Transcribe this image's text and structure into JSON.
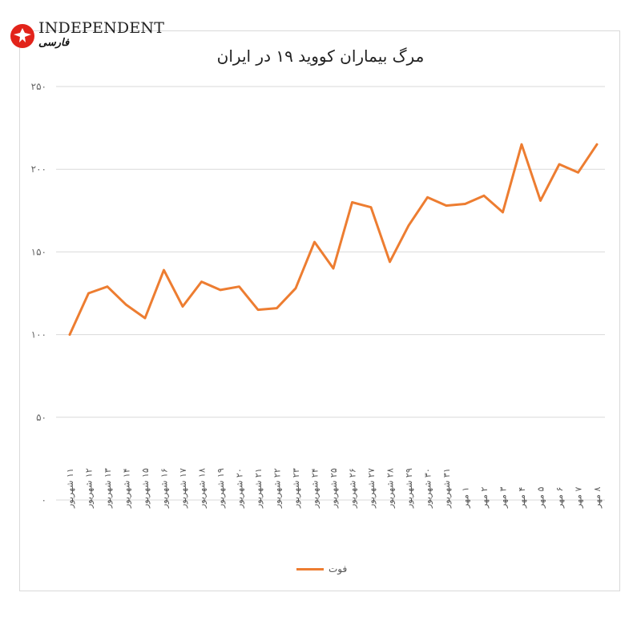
{
  "brand": {
    "name": "INDEPENDENT",
    "subtitle": "فارسی",
    "logo_color": "#E2231A"
  },
  "chart_data": {
    "type": "line",
    "title": "مرگ بیماران کووید ۱۹ در ایران",
    "categories": [
      "۱۱ شهریور",
      "۱۲ شهریور",
      "۱۳ شهریور",
      "۱۴ شهریور",
      "۱۵ شهریور",
      "۱۶ شهریور",
      "۱۷ شهریور",
      "۱۸ شهریور",
      "۱۹ شهریور",
      "۲۰ شهریور",
      "۲۱ شهریور",
      "۲۲ شهریور",
      "۲۳ شهریور",
      "۲۴ شهریور",
      "۲۵ شهریور",
      "۲۶ شهریور",
      "۲۷ شهریور",
      "۲۸ شهریور",
      "۲۹ شهریور",
      "۳۰ شهریور",
      "۳۱ شهریور",
      "۱ مهر",
      "۲ مهر",
      "۳ مهر",
      "۴ مهر",
      "۵ مهر",
      "۶ مهر",
      "۷ مهر",
      "۸ مهر"
    ],
    "series": [
      {
        "name": "فوت",
        "color": "#ED7D31",
        "values": [
          100,
          125,
          129,
          118,
          110,
          139,
          117,
          132,
          127,
          129,
          115,
          116,
          128,
          156,
          140,
          180,
          177,
          144,
          166,
          183,
          178,
          179,
          184,
          174,
          215,
          181,
          203,
          198,
          215
        ]
      }
    ],
    "y_ticks": [
      "۰",
      "۵۰",
      "۱۰۰",
      "۱۵۰",
      "۲۰۰",
      "۲۵۰"
    ],
    "ylim": [
      0,
      250
    ],
    "grid": true,
    "legend_position": "bottom"
  }
}
